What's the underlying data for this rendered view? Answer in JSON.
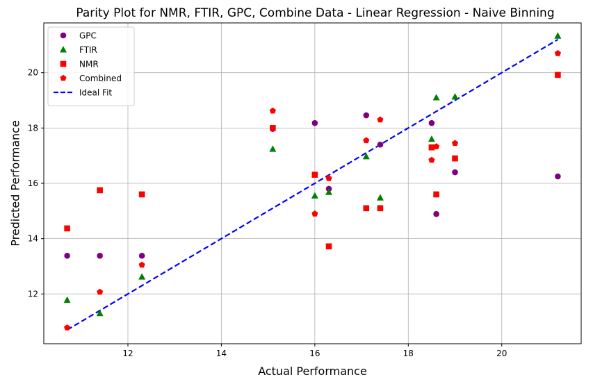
{
  "chart_data": {
    "type": "scatter",
    "title": "Parity Plot for NMR, FTIR, GPC, Combine Data - Linear Regression - Naive Binning",
    "xlabel": "Actual Performance",
    "ylabel": "Predicted Performance",
    "xlim": [
      10.2,
      21.7
    ],
    "ylim": [
      10.2,
      21.8
    ],
    "xticks": [
      12,
      14,
      16,
      18,
      20
    ],
    "yticks": [
      12,
      14,
      16,
      18,
      20
    ],
    "grid": true,
    "legend_position": "top-left",
    "series": [
      {
        "name": "GPC",
        "marker": "circle",
        "color": "#800080",
        "points": [
          [
            10.7,
            13.38
          ],
          [
            11.4,
            13.38
          ],
          [
            12.3,
            13.38
          ],
          [
            15.1,
            17.97
          ],
          [
            16.0,
            18.18
          ],
          [
            16.3,
            15.8
          ],
          [
            17.1,
            18.46
          ],
          [
            17.4,
            17.4
          ],
          [
            18.5,
            18.18
          ],
          [
            18.6,
            14.89
          ],
          [
            19.0,
            16.4
          ],
          [
            21.2,
            16.25
          ]
        ]
      },
      {
        "name": "FTIR",
        "marker": "triangle",
        "color": "#008000",
        "points": [
          [
            10.7,
            11.78
          ],
          [
            11.4,
            11.3
          ],
          [
            12.3,
            12.62
          ],
          [
            15.1,
            17.24
          ],
          [
            16.0,
            15.55
          ],
          [
            16.3,
            15.68
          ],
          [
            17.1,
            16.97
          ],
          [
            17.4,
            15.48
          ],
          [
            18.5,
            17.6
          ],
          [
            18.6,
            19.1
          ],
          [
            19.0,
            19.13
          ],
          [
            21.2,
            21.33
          ]
        ]
      },
      {
        "name": "NMR",
        "marker": "square",
        "color": "#ff0000",
        "points": [
          [
            10.7,
            14.37
          ],
          [
            11.4,
            15.75
          ],
          [
            12.3,
            15.6
          ],
          [
            15.1,
            18.0
          ],
          [
            16.0,
            16.31
          ],
          [
            16.3,
            13.72
          ],
          [
            17.1,
            15.1
          ],
          [
            17.4,
            15.1
          ],
          [
            18.5,
            17.3
          ],
          [
            18.6,
            15.6
          ],
          [
            19.0,
            16.9
          ],
          [
            21.2,
            19.92
          ]
        ]
      },
      {
        "name": "Combined",
        "marker": "pentagon",
        "color": "#ff0000",
        "points": [
          [
            10.7,
            10.78
          ],
          [
            11.4,
            12.07
          ],
          [
            12.3,
            13.05
          ],
          [
            15.1,
            18.62
          ],
          [
            16.0,
            14.9
          ],
          [
            16.3,
            16.18
          ],
          [
            17.1,
            17.55
          ],
          [
            17.4,
            18.3
          ],
          [
            18.5,
            16.84
          ],
          [
            18.6,
            17.33
          ],
          [
            19.0,
            17.45
          ],
          [
            21.2,
            20.7
          ]
        ]
      }
    ],
    "ideal_fit": {
      "name": "Ideal Fit",
      "color": "#0000ff",
      "style": "dashed",
      "points": [
        [
          10.7,
          10.7
        ],
        [
          21.2,
          21.2
        ]
      ]
    }
  }
}
